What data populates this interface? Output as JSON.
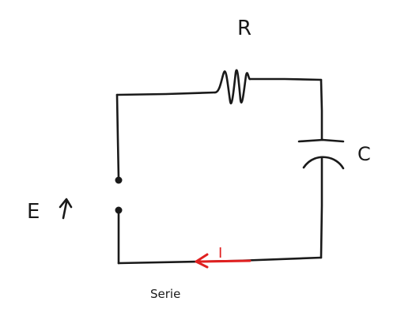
{
  "diagram": {
    "resistor_label": "R",
    "capacitor_label": "C",
    "source_label": "E",
    "current_label": "I",
    "caption": "Serie"
  },
  "colors": {
    "ink": "#1a1a1a",
    "current": "#e02020",
    "background": "#ffffff"
  }
}
